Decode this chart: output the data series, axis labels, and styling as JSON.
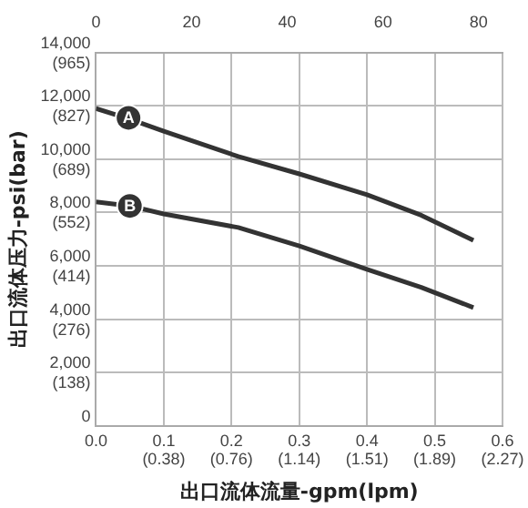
{
  "chart_data": {
    "type": "line",
    "xlabel": "出口流体流量-gpm(lpm)",
    "ylabel": "出口流体压力-psi(bar)",
    "series": [
      {
        "color": "#333333",
        "x": [
          0,
          0.05,
          0.1,
          0.21,
          0.3,
          0.4,
          0.48,
          0.557
        ],
        "values": [
          11900,
          11500,
          11050,
          10100,
          9450,
          8670,
          7900,
          6960
        ]
      },
      {
        "color": "#333333",
        "x": [
          0,
          0.05,
          0.1,
          0.21,
          0.3,
          0.4,
          0.48,
          0.557
        ],
        "values": [
          8400,
          8250,
          7950,
          7440,
          6750,
          5870,
          5200,
          4440
        ]
      }
    ],
    "annotations": [
      {
        "text": "A",
        "x": 0.048,
        "y": 11550
      },
      {
        "text": "B",
        "x": 0.05,
        "y": 8250
      },
      "(0.38)",
      "(0.76)",
      "(1.14)",
      "(1.51)",
      "(1.89)",
      "(2.27)"
    ],
    "xlim": [
      0,
      0.6
    ],
    "xticks": [
      {
        "value": 0,
        "label": "0.0"
      },
      0.1,
      0.2,
      0.3,
      0.4,
      0.5,
      0.6
    ],
    "x2lim": [
      0,
      85
    ],
    "x2ticks": [
      0,
      20,
      40,
      60,
      80
    ],
    "ylim": [
      0,
      14000
    ],
    "yticks": [
      0,
      {
        "value": 2000,
        "label": "2,000"
      },
      {
        "value": 4000,
        "label": "4,000"
      },
      {
        "value": 6000,
        "label": "6,000"
      },
      {
        "value": 8000,
        "label": "8,000"
      },
      {
        "value": 10000,
        "label": "10,000"
      },
      {
        "value": 12000,
        "label": "12,000"
      },
      {
        "value": 14000,
        "label": "14,000"
      }
    ],
    "y2lim": [
      0,
      965.3
    ],
    "y2ticks": [
      {
        "value": 138,
        "label": "(138)"
      },
      {
        "value": 276,
        "label": "(276)"
      },
      {
        "value": 414,
        "label": "(414)"
      },
      {
        "value": 552,
        "label": "(552)"
      },
      {
        "value": 689,
        "label": "(689)"
      },
      {
        "value": 827,
        "label": "(827)"
      },
      {
        "value": 965,
        "label": "(965)"
      }
    ],
    "grid": true,
    "legend": false,
    "marker": "none",
    "line_style": "solid"
  }
}
